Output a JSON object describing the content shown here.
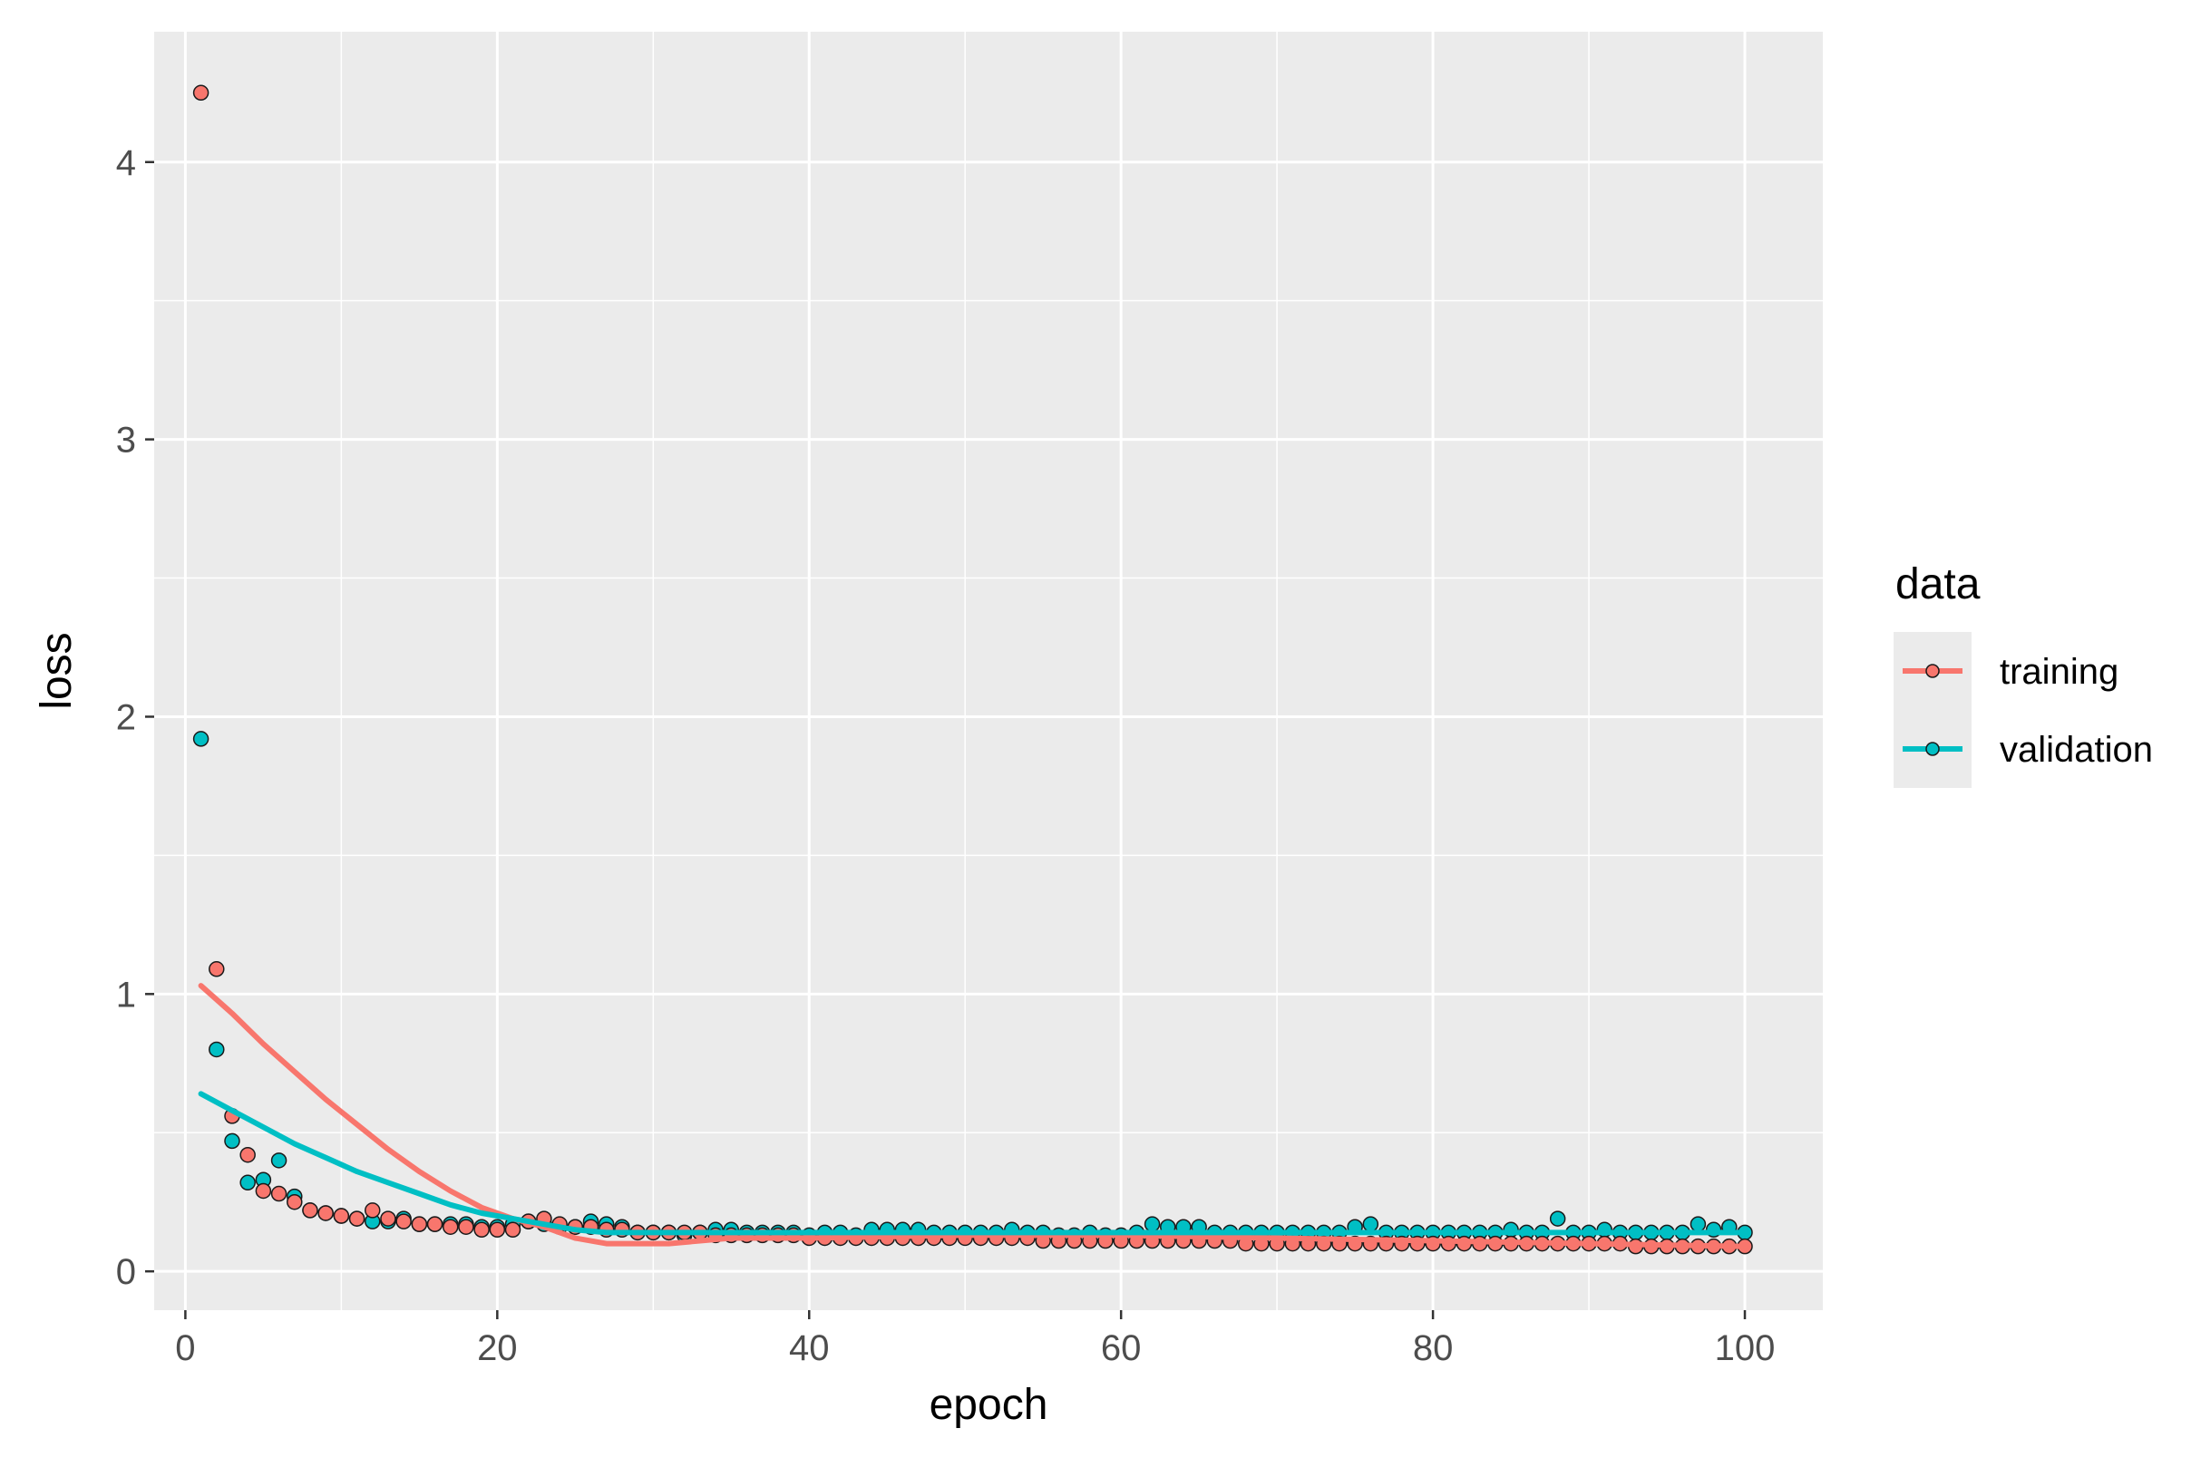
{
  "chart_data": {
    "type": "scatter",
    "xlabel": "epoch",
    "ylabel": "loss",
    "xlim": [
      -2,
      105
    ],
    "ylim": [
      -0.14,
      4.47
    ],
    "x_ticks": [
      0,
      20,
      40,
      60,
      80,
      100
    ],
    "y_ticks": [
      0,
      1,
      2,
      3,
      4
    ],
    "x_tick_labels": [
      "0",
      "20",
      "40",
      "60",
      "80",
      "100"
    ],
    "y_tick_labels": [
      "0",
      "1",
      "2",
      "3",
      "4"
    ],
    "grid": true,
    "legend": {
      "title": "data",
      "position": "right"
    },
    "series": [
      {
        "name": "training",
        "color": "#F8766D",
        "points": [
          [
            1,
            4.25
          ],
          [
            2,
            1.09
          ],
          [
            3,
            0.56
          ],
          [
            4,
            0.42
          ],
          [
            5,
            0.29
          ],
          [
            6,
            0.28
          ],
          [
            7,
            0.25
          ],
          [
            8,
            0.22
          ],
          [
            9,
            0.21
          ],
          [
            10,
            0.2
          ],
          [
            11,
            0.19
          ],
          [
            12,
            0.22
          ],
          [
            13,
            0.19
          ],
          [
            14,
            0.18
          ],
          [
            15,
            0.17
          ],
          [
            16,
            0.17
          ],
          [
            17,
            0.16
          ],
          [
            18,
            0.16
          ],
          [
            19,
            0.15
          ],
          [
            20,
            0.15
          ],
          [
            21,
            0.15
          ],
          [
            22,
            0.18
          ],
          [
            23,
            0.19
          ],
          [
            24,
            0.17
          ],
          [
            25,
            0.16
          ],
          [
            26,
            0.16
          ],
          [
            27,
            0.15
          ],
          [
            28,
            0.15
          ],
          [
            29,
            0.14
          ],
          [
            30,
            0.14
          ],
          [
            31,
            0.14
          ],
          [
            32,
            0.14
          ],
          [
            33,
            0.14
          ],
          [
            34,
            0.13
          ],
          [
            35,
            0.13
          ],
          [
            36,
            0.13
          ],
          [
            37,
            0.13
          ],
          [
            38,
            0.13
          ],
          [
            39,
            0.13
          ],
          [
            40,
            0.12
          ],
          [
            41,
            0.12
          ],
          [
            42,
            0.12
          ],
          [
            43,
            0.12
          ],
          [
            44,
            0.12
          ],
          [
            45,
            0.12
          ],
          [
            46,
            0.12
          ],
          [
            47,
            0.12
          ],
          [
            48,
            0.12
          ],
          [
            49,
            0.12
          ],
          [
            50,
            0.12
          ],
          [
            51,
            0.12
          ],
          [
            52,
            0.12
          ],
          [
            53,
            0.12
          ],
          [
            54,
            0.12
          ],
          [
            55,
            0.11
          ],
          [
            56,
            0.11
          ],
          [
            57,
            0.11
          ],
          [
            58,
            0.11
          ],
          [
            59,
            0.11
          ],
          [
            60,
            0.11
          ],
          [
            61,
            0.11
          ],
          [
            62,
            0.11
          ],
          [
            63,
            0.11
          ],
          [
            64,
            0.11
          ],
          [
            65,
            0.11
          ],
          [
            66,
            0.11
          ],
          [
            67,
            0.11
          ],
          [
            68,
            0.1
          ],
          [
            69,
            0.1
          ],
          [
            70,
            0.1
          ],
          [
            71,
            0.1
          ],
          [
            72,
            0.1
          ],
          [
            73,
            0.1
          ],
          [
            74,
            0.1
          ],
          [
            75,
            0.1
          ],
          [
            76,
            0.1
          ],
          [
            77,
            0.1
          ],
          [
            78,
            0.1
          ],
          [
            79,
            0.1
          ],
          [
            80,
            0.1
          ],
          [
            81,
            0.1
          ],
          [
            82,
            0.1
          ],
          [
            83,
            0.1
          ],
          [
            84,
            0.1
          ],
          [
            85,
            0.1
          ],
          [
            86,
            0.1
          ],
          [
            87,
            0.1
          ],
          [
            88,
            0.1
          ],
          [
            89,
            0.1
          ],
          [
            90,
            0.1
          ],
          [
            91,
            0.1
          ],
          [
            92,
            0.1
          ],
          [
            93,
            0.09
          ],
          [
            94,
            0.09
          ],
          [
            95,
            0.09
          ],
          [
            96,
            0.09
          ],
          [
            97,
            0.09
          ],
          [
            98,
            0.09
          ],
          [
            99,
            0.09
          ],
          [
            100,
            0.09
          ]
        ],
        "smooth": [
          [
            1,
            1.03
          ],
          [
            3,
            0.93
          ],
          [
            5,
            0.82
          ],
          [
            7,
            0.72
          ],
          [
            9,
            0.62
          ],
          [
            11,
            0.53
          ],
          [
            13,
            0.44
          ],
          [
            15,
            0.36
          ],
          [
            17,
            0.29
          ],
          [
            19,
            0.23
          ],
          [
            21,
            0.19
          ],
          [
            23,
            0.16
          ],
          [
            25,
            0.12
          ],
          [
            27,
            0.1
          ],
          [
            29,
            0.1
          ],
          [
            31,
            0.1
          ],
          [
            33,
            0.11
          ],
          [
            35,
            0.12
          ],
          [
            40,
            0.12
          ],
          [
            50,
            0.13
          ],
          [
            60,
            0.13
          ],
          [
            70,
            0.12
          ],
          [
            80,
            0.11
          ],
          [
            90,
            0.1
          ],
          [
            100,
            0.09
          ]
        ]
      },
      {
        "name": "validation",
        "color": "#00BFC4",
        "points": [
          [
            1,
            1.92
          ],
          [
            2,
            0.8
          ],
          [
            3,
            0.47
          ],
          [
            4,
            0.32
          ],
          [
            5,
            0.33
          ],
          [
            6,
            0.4
          ],
          [
            7,
            0.27
          ],
          [
            8,
            0.22
          ],
          [
            9,
            0.21
          ],
          [
            10,
            0.2
          ],
          [
            11,
            0.19
          ],
          [
            12,
            0.18
          ],
          [
            13,
            0.18
          ],
          [
            14,
            0.19
          ],
          [
            15,
            0.17
          ],
          [
            16,
            0.17
          ],
          [
            17,
            0.17
          ],
          [
            18,
            0.17
          ],
          [
            19,
            0.16
          ],
          [
            20,
            0.16
          ],
          [
            21,
            0.17
          ],
          [
            22,
            0.18
          ],
          [
            23,
            0.17
          ],
          [
            24,
            0.16
          ],
          [
            25,
            0.16
          ],
          [
            26,
            0.18
          ],
          [
            27,
            0.17
          ],
          [
            28,
            0.16
          ],
          [
            29,
            0.14
          ],
          [
            30,
            0.14
          ],
          [
            31,
            0.14
          ],
          [
            32,
            0.13
          ],
          [
            33,
            0.14
          ],
          [
            34,
            0.15
          ],
          [
            35,
            0.15
          ],
          [
            36,
            0.14
          ],
          [
            37,
            0.14
          ],
          [
            38,
            0.14
          ],
          [
            39,
            0.14
          ],
          [
            40,
            0.13
          ],
          [
            41,
            0.14
          ],
          [
            42,
            0.14
          ],
          [
            43,
            0.13
          ],
          [
            44,
            0.15
          ],
          [
            45,
            0.15
          ],
          [
            46,
            0.15
          ],
          [
            47,
            0.15
          ],
          [
            48,
            0.14
          ],
          [
            49,
            0.14
          ],
          [
            50,
            0.14
          ],
          [
            51,
            0.14
          ],
          [
            52,
            0.14
          ],
          [
            53,
            0.15
          ],
          [
            54,
            0.14
          ],
          [
            55,
            0.14
          ],
          [
            56,
            0.13
          ],
          [
            57,
            0.13
          ],
          [
            58,
            0.14
          ],
          [
            59,
            0.13
          ],
          [
            60,
            0.13
          ],
          [
            61,
            0.14
          ],
          [
            62,
            0.17
          ],
          [
            63,
            0.16
          ],
          [
            64,
            0.16
          ],
          [
            65,
            0.16
          ],
          [
            66,
            0.14
          ],
          [
            67,
            0.14
          ],
          [
            68,
            0.14
          ],
          [
            69,
            0.14
          ],
          [
            70,
            0.14
          ],
          [
            71,
            0.14
          ],
          [
            72,
            0.14
          ],
          [
            73,
            0.14
          ],
          [
            74,
            0.14
          ],
          [
            75,
            0.16
          ],
          [
            76,
            0.17
          ],
          [
            77,
            0.14
          ],
          [
            78,
            0.14
          ],
          [
            79,
            0.14
          ],
          [
            80,
            0.14
          ],
          [
            81,
            0.14
          ],
          [
            82,
            0.14
          ],
          [
            83,
            0.14
          ],
          [
            84,
            0.14
          ],
          [
            85,
            0.15
          ],
          [
            86,
            0.14
          ],
          [
            87,
            0.14
          ],
          [
            88,
            0.19
          ],
          [
            89,
            0.14
          ],
          [
            90,
            0.14
          ],
          [
            91,
            0.15
          ],
          [
            92,
            0.14
          ],
          [
            93,
            0.14
          ],
          [
            94,
            0.14
          ],
          [
            95,
            0.14
          ],
          [
            96,
            0.14
          ],
          [
            97,
            0.17
          ],
          [
            98,
            0.15
          ],
          [
            99,
            0.16
          ],
          [
            100,
            0.14
          ]
        ],
        "smooth": [
          [
            1,
            0.64
          ],
          [
            3,
            0.58
          ],
          [
            5,
            0.52
          ],
          [
            7,
            0.46
          ],
          [
            9,
            0.41
          ],
          [
            11,
            0.36
          ],
          [
            13,
            0.32
          ],
          [
            15,
            0.28
          ],
          [
            17,
            0.24
          ],
          [
            19,
            0.21
          ],
          [
            21,
            0.19
          ],
          [
            23,
            0.17
          ],
          [
            25,
            0.15
          ],
          [
            27,
            0.14
          ],
          [
            30,
            0.14
          ],
          [
            35,
            0.14
          ],
          [
            40,
            0.14
          ],
          [
            50,
            0.14
          ],
          [
            60,
            0.14
          ],
          [
            70,
            0.14
          ],
          [
            80,
            0.14
          ],
          [
            90,
            0.14
          ],
          [
            100,
            0.14
          ]
        ]
      }
    ]
  }
}
